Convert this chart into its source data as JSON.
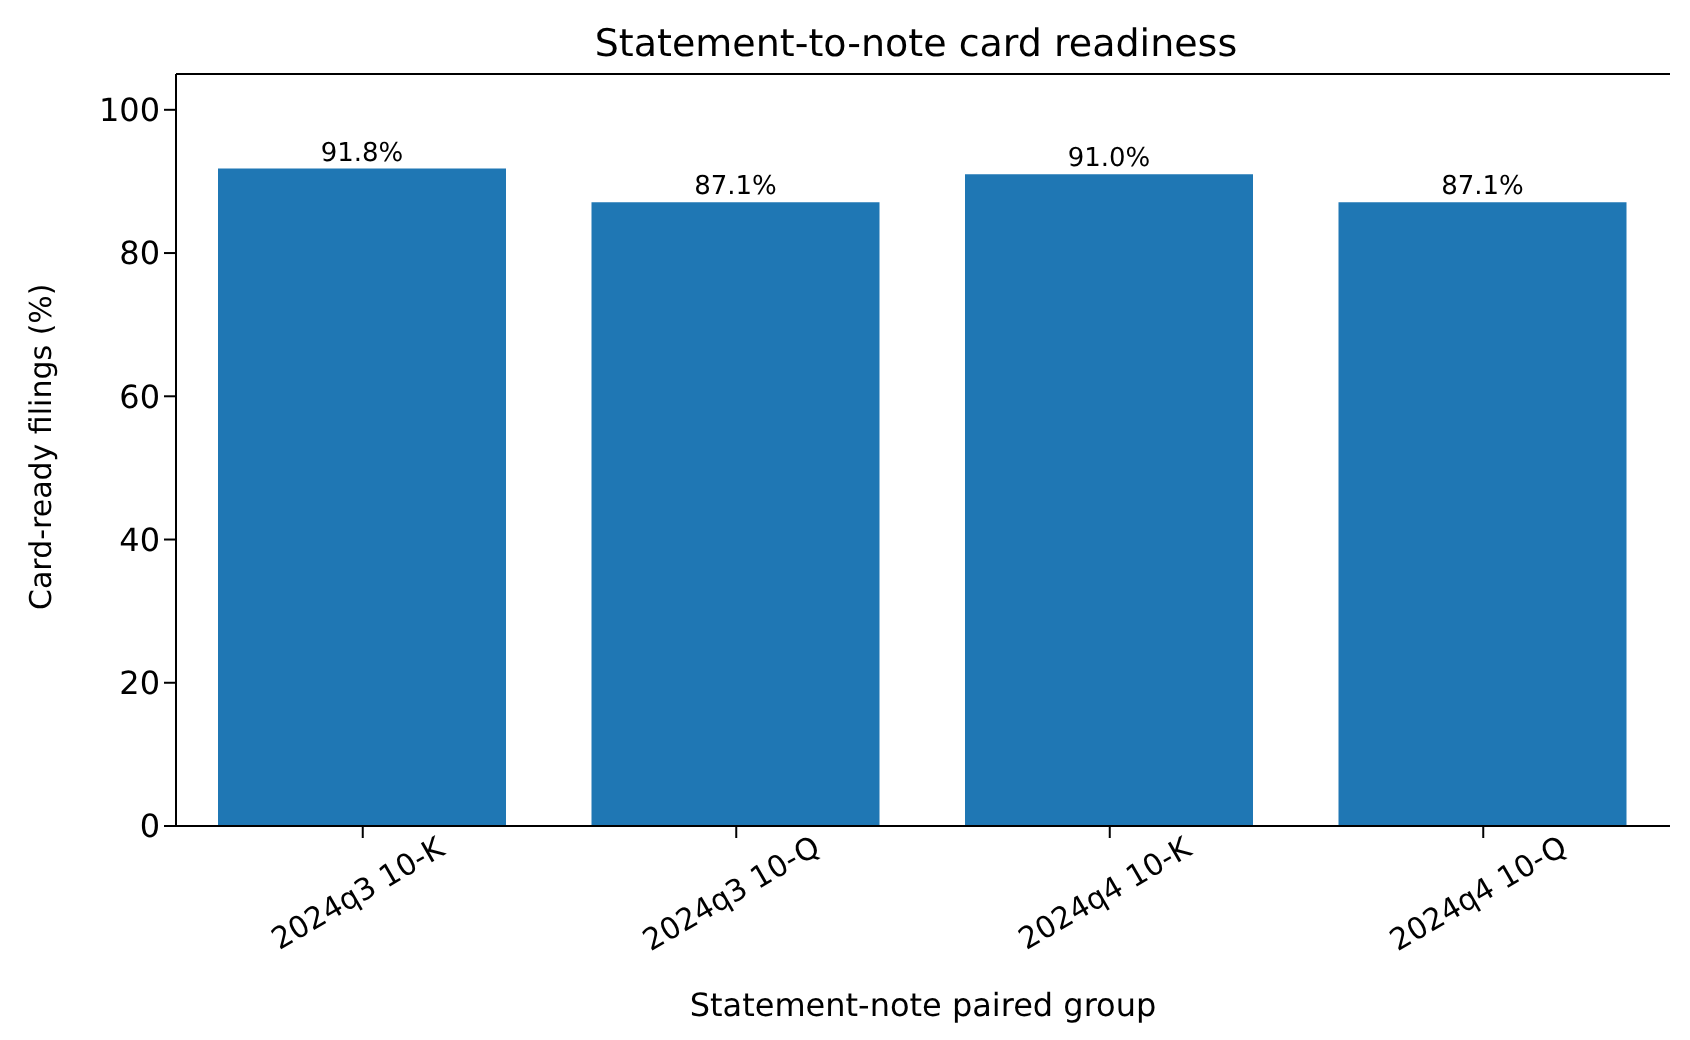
{
  "chart_data": {
    "type": "bar",
    "title": "Statement-to-note card readiness",
    "xlabel": "Statement-note paired group",
    "ylabel": "Card-ready filings (%)",
    "categories": [
      "2024q3 10-K",
      "2024q3 10-Q",
      "2024q4 10-K",
      "2024q4 10-Q"
    ],
    "values": [
      91.8,
      87.1,
      91.0,
      87.1
    ],
    "value_labels": [
      "91.8%",
      "87.1%",
      "91.0%",
      "87.1%"
    ],
    "color": "#1f77b4",
    "ylim": [
      0,
      105
    ],
    "yticks": [
      0,
      20,
      40,
      60,
      80,
      100
    ],
    "grid": false
  }
}
